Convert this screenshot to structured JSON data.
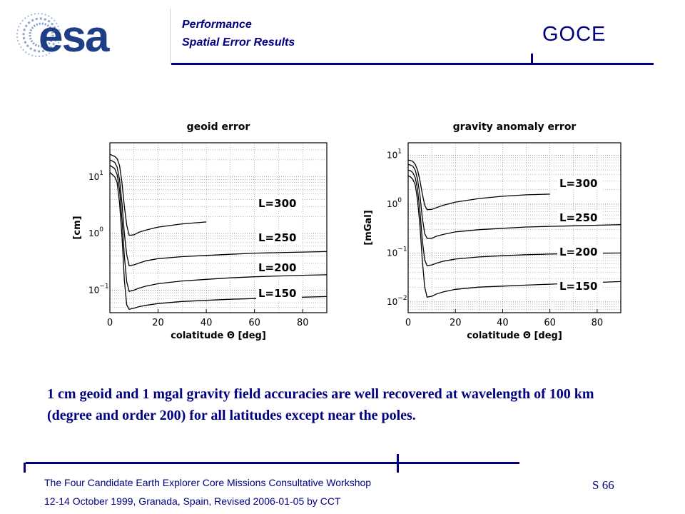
{
  "header": {
    "logo_text": "esa",
    "title": "Performance",
    "subtitle": "Spatial Error Results",
    "mission": "GOCE"
  },
  "chart_data": [
    {
      "type": "line",
      "title": "geoid error",
      "xlabel": "colatitude Θ [deg]",
      "ylabel": "[cm]",
      "xlim": [
        0,
        90
      ],
      "x_ticks": [
        0,
        20,
        40,
        60,
        80
      ],
      "x_tick_labels": [
        "0",
        "20",
        "40",
        "60",
        "80"
      ],
      "y_scale": "log",
      "ylim": [
        0.04,
        40
      ],
      "y_ticks": [
        {
          "value": 10,
          "base": "10",
          "exp": "1"
        },
        {
          "value": 1,
          "base": "10",
          "exp": "0"
        },
        {
          "value": 0.1,
          "base": "10",
          "exp": "−1"
        }
      ],
      "grid": true,
      "x": [
        0,
        1,
        2,
        3,
        4,
        5,
        6,
        7,
        8,
        10,
        12,
        15,
        20,
        30,
        40,
        50,
        60,
        70,
        80,
        90
      ],
      "series": [
        {
          "name": "L=300",
          "x_end": 43,
          "values": [
            25,
            24,
            23,
            21,
            16,
            8,
            3,
            1.4,
            0.93,
            0.95,
            1.05,
            1.15,
            1.3,
            1.48,
            1.6,
            null,
            null,
            null,
            null,
            null
          ]
        },
        {
          "name": "L=250",
          "values": [
            20,
            19,
            18,
            15,
            9,
            3.5,
            1.0,
            0.42,
            0.27,
            0.28,
            0.3,
            0.33,
            0.36,
            0.39,
            0.41,
            0.43,
            0.45,
            0.46,
            0.47,
            0.48
          ]
        },
        {
          "name": "L=200",
          "values": [
            16,
            15,
            14,
            11,
            6,
            1.8,
            0.4,
            0.14,
            0.095,
            0.1,
            0.108,
            0.118,
            0.13,
            0.145,
            0.155,
            0.165,
            0.172,
            0.178,
            0.183,
            0.187
          ]
        },
        {
          "name": "L=150",
          "values": [
            12,
            11,
            10,
            8,
            3.5,
            0.9,
            0.15,
            0.055,
            0.046,
            0.048,
            0.051,
            0.054,
            0.058,
            0.063,
            0.066,
            0.069,
            0.071,
            0.073,
            0.075,
            0.077
          ]
        }
      ],
      "annotations": [
        "L=300",
        "L=250",
        "L=200",
        "L=150"
      ]
    },
    {
      "type": "line",
      "title": "gravity anomaly error",
      "xlabel": "colatitude Θ [deg]",
      "ylabel": "[mGal]",
      "xlim": [
        0,
        90
      ],
      "x_ticks": [
        0,
        20,
        40,
        60,
        80
      ],
      "x_tick_labels": [
        "0",
        "20",
        "40",
        "60",
        "80"
      ],
      "y_scale": "log",
      "ylim": [
        0.006,
        18
      ],
      "y_ticks": [
        {
          "value": 10,
          "base": "10",
          "exp": "1"
        },
        {
          "value": 1,
          "base": "10",
          "exp": "0"
        },
        {
          "value": 0.1,
          "base": "10",
          "exp": "−1"
        },
        {
          "value": 0.01,
          "base": "10",
          "exp": "−2"
        }
      ],
      "grid": true,
      "x": [
        0,
        1,
        2,
        3,
        4,
        5,
        6,
        7,
        8,
        10,
        12,
        15,
        20,
        30,
        40,
        50,
        60,
        70,
        80,
        90
      ],
      "series": [
        {
          "name": "L=300",
          "x_end": 60,
          "values": [
            8,
            7.8,
            7.5,
            6.5,
            5,
            3,
            1.6,
            0.95,
            0.77,
            0.78,
            0.85,
            0.95,
            1.1,
            1.3,
            1.45,
            1.55,
            1.6,
            null,
            null,
            null
          ]
        },
        {
          "name": "L=250",
          "values": [
            6.5,
            6.3,
            6,
            5,
            3.2,
            1.5,
            0.52,
            0.25,
            0.2,
            0.2,
            0.22,
            0.24,
            0.27,
            0.3,
            0.32,
            0.34,
            0.35,
            0.36,
            0.37,
            0.38
          ]
        },
        {
          "name": "L=200",
          "values": [
            5,
            4.8,
            4.4,
            3.5,
            2,
            0.7,
            0.18,
            0.072,
            0.055,
            0.057,
            0.062,
            0.068,
            0.075,
            0.083,
            0.088,
            0.092,
            0.095,
            0.097,
            0.099,
            0.1
          ]
        },
        {
          "name": "L=150",
          "values": [
            3.8,
            3.6,
            3.2,
            2.5,
            1.2,
            0.35,
            0.07,
            0.02,
            0.0125,
            0.013,
            0.0145,
            0.016,
            0.018,
            0.02,
            0.021,
            0.022,
            0.023,
            0.024,
            0.025,
            0.026
          ]
        }
      ],
      "annotations": [
        "L=300",
        "L=250",
        "L=200",
        "L=150"
      ]
    }
  ],
  "summary": "1 cm geoid and 1 mgal gravity field accuracies are well recovered at wavelength of 100 km (degree and order 200) for all latitudes except near the poles.",
  "footer": {
    "line1": "The Four Candidate Earth Explorer Core Missions Consultative Workshop",
    "line2": "12-14 October 1999, Granada, Spain, Revised 2006-01-05 by CCT",
    "slide_number": "S 66"
  },
  "colors": {
    "accent": "#000080",
    "logo_blue": "#1e3f86",
    "plot_line": "#000000"
  }
}
